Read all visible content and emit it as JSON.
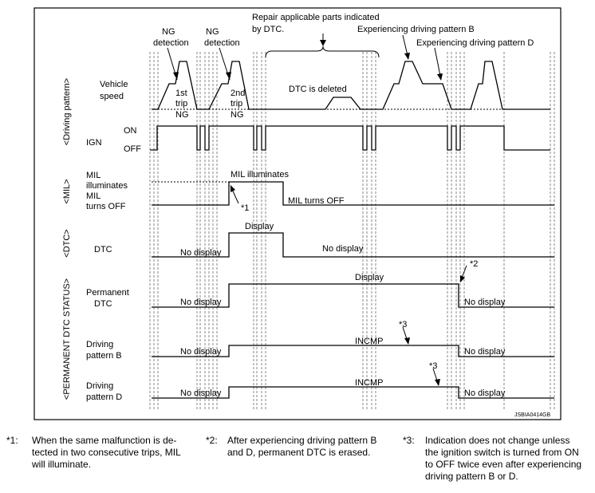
{
  "diagram_texts": [
    "NG",
    "detection",
    "NG",
    "detection",
    "Repair applicable parts indicated",
    "by DTC.",
    "Experiencing driving pattern B",
    "Experiencing driving pattern D",
    "Vehicle",
    "speed",
    "1st",
    "trip",
    "NG",
    "2nd",
    "trip",
    "NG",
    "DTC is deleted",
    "ON",
    "IGN",
    "OFF",
    "MIL",
    "illuminates",
    "MIL",
    "turns OFF",
    "MIL illuminates",
    "*1",
    "MIL turns OFF",
    "Display",
    "DTC",
    "No display",
    "No display",
    "Permanent",
    "DTC",
    "Display",
    "*2",
    "No display",
    "No display",
    "Driving",
    "pattern B",
    "INCMP",
    "*3",
    "No display",
    "No display",
    "Driving",
    "pattern D",
    "INCMP",
    "*3",
    "No display",
    "No display",
    "JSBIA0414GB",
    "<Driving pattern>",
    "<MIL>",
    "<DTC>",
    "<PERMANENT DTC STATUS>"
  ],
  "footnotes": [
    {
      "mark": "*1:",
      "lines": [
        "When the same malfunction is de-",
        "tected in two consecutive trips, MIL",
        "will illuminate."
      ]
    },
    {
      "mark": "*2:",
      "lines": [
        "After experiencing driving pattern B",
        "and D, permanent DTC is erased."
      ]
    },
    {
      "mark": "*3:",
      "lines": [
        "Indication does not change unless",
        "the ignition switch is turned from ON",
        "to OFF twice even after experiencing",
        "driving pattern B or D."
      ]
    }
  ]
}
